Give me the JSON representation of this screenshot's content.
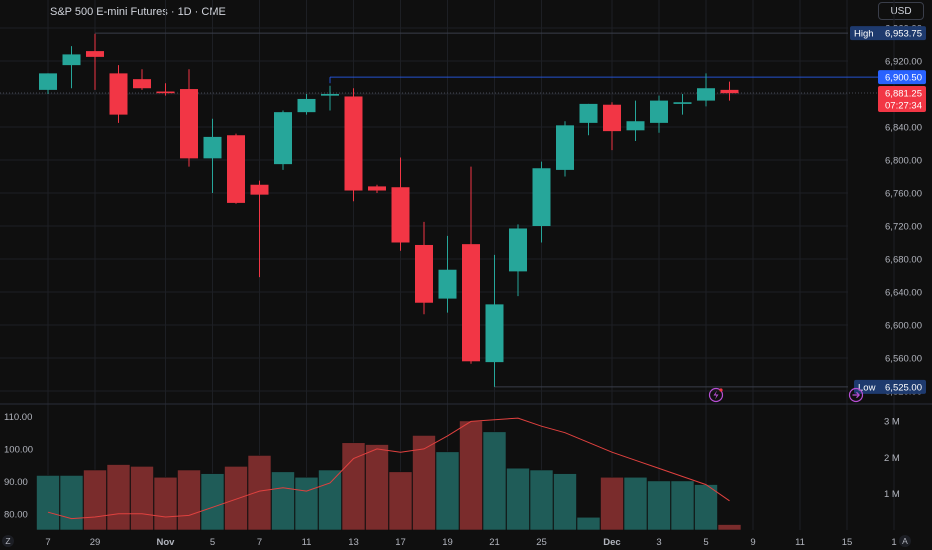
{
  "header": {
    "title": "S&P 500 E-mini Futures · 1D · CME",
    "currency": "USD"
  },
  "colors": {
    "up": "#26a69a",
    "down": "#f23645",
    "up_volume": "#1f5c58",
    "down_volume": "#7a2c2c",
    "grid": "#1d1f24",
    "text": "#b2b5be",
    "ma_line": "#e0413f",
    "highlow_tag": "#1e3a6e",
    "last_tag": "#2962ff",
    "price_tag": "#f23645"
  },
  "markers": {
    "high_label": "High",
    "high_value": "6,953.75",
    "low_label": "Low",
    "low_value": "6,525.00",
    "prev_close_value": "6,900.50",
    "last_price_value": "6,881.25",
    "countdown": "07:27:34"
  },
  "bottom_buttons": {
    "left": "Z",
    "right": "A"
  },
  "chart_data": [
    {
      "type": "candlestick",
      "title": "S&P 500 E-mini Futures · 1D · CME",
      "ylim": [
        6520,
        6960
      ],
      "y_ticks": [
        "6,960.00",
        "6,920.00",
        "6,880.00",
        "6,840.00",
        "6,800.00",
        "6,760.00",
        "6,720.00",
        "6,680.00",
        "6,640.00",
        "6,600.00",
        "6,560.00",
        "6,520.00"
      ],
      "x_labels": [
        {
          "label": "7",
          "index": 0
        },
        {
          "label": "29",
          "index": 2
        },
        {
          "label": "Nov",
          "index": 5
        },
        {
          "label": "5",
          "index": 7
        },
        {
          "label": "7",
          "index": 9
        },
        {
          "label": "11",
          "index": 11
        },
        {
          "label": "13",
          "index": 13
        },
        {
          "label": "17",
          "index": 15
        },
        {
          "label": "19",
          "index": 17
        },
        {
          "label": "21",
          "index": 19
        },
        {
          "label": "25",
          "index": 21
        },
        {
          "label": "Dec",
          "index": 24
        },
        {
          "label": "3",
          "index": 26
        },
        {
          "label": "5",
          "index": 28
        },
        {
          "label": "9",
          "index": 30
        },
        {
          "label": "11",
          "index": 32
        },
        {
          "label": "15",
          "index": 34
        },
        {
          "label": "1",
          "index": 36
        }
      ],
      "candles": [
        {
          "o": 6885,
          "h": 6905,
          "l": 6880,
          "c": 6905
        },
        {
          "o": 6915,
          "h": 6938,
          "l": 6887,
          "c": 6928
        },
        {
          "o": 6932,
          "h": 6953,
          "l": 6885,
          "c": 6925
        },
        {
          "o": 6905,
          "h": 6915,
          "l": 6845,
          "c": 6855
        },
        {
          "o": 6898,
          "h": 6910,
          "l": 6885,
          "c": 6887
        },
        {
          "o": 6883,
          "h": 6893,
          "l": 6878,
          "c": 6881
        },
        {
          "o": 6886,
          "h": 6910,
          "l": 6792,
          "c": 6802
        },
        {
          "o": 6802,
          "h": 6850,
          "l": 6760,
          "c": 6828
        },
        {
          "o": 6830,
          "h": 6832,
          "l": 6747,
          "c": 6748
        },
        {
          "o": 6770,
          "h": 6775,
          "l": 6658,
          "c": 6758
        },
        {
          "o": 6795,
          "h": 6860,
          "l": 6788,
          "c": 6858
        },
        {
          "o": 6858,
          "h": 6880,
          "l": 6855,
          "c": 6874
        },
        {
          "o": 6878,
          "h": 6890,
          "l": 6860,
          "c": 6880
        },
        {
          "o": 6877,
          "h": 6887,
          "l": 6750,
          "c": 6763
        },
        {
          "o": 6768,
          "h": 6770,
          "l": 6760,
          "c": 6763
        },
        {
          "o": 6767,
          "h": 6803,
          "l": 6690,
          "c": 6700
        },
        {
          "o": 6697,
          "h": 6725,
          "l": 6613,
          "c": 6627
        },
        {
          "o": 6632,
          "h": 6708,
          "l": 6615,
          "c": 6667
        },
        {
          "o": 6698,
          "h": 6792,
          "l": 6553,
          "c": 6556
        },
        {
          "o": 6555,
          "h": 6685,
          "l": 6525,
          "c": 6625
        },
        {
          "o": 6665,
          "h": 6722,
          "l": 6635,
          "c": 6717
        },
        {
          "o": 6720,
          "h": 6798,
          "l": 6700,
          "c": 6790
        },
        {
          "o": 6788,
          "h": 6847,
          "l": 6780,
          "c": 6842
        },
        {
          "o": 6845,
          "h": 6868,
          "l": 6830,
          "c": 6868
        },
        {
          "o": 6867,
          "h": 6870,
          "l": 6812,
          "c": 6835
        },
        {
          "o": 6836,
          "h": 6872,
          "l": 6823,
          "c": 6847
        },
        {
          "o": 6845,
          "h": 6878,
          "l": 6833,
          "c": 6872
        },
        {
          "o": 6868,
          "h": 6880,
          "l": 6855,
          "c": 6870
        },
        {
          "o": 6872,
          "h": 6905,
          "l": 6865,
          "c": 6887
        },
        {
          "o": 6885,
          "h": 6895,
          "l": 6872,
          "c": 6881
        }
      ]
    },
    {
      "type": "bar",
      "left_axis": {
        "ylim": [
          75,
          112
        ],
        "ticks": [
          "110.00",
          "100.00",
          "90.00",
          "80.00"
        ]
      },
      "right_axis": {
        "ylim": [
          0,
          3.3
        ],
        "ticks": [
          "3 M",
          "2 M",
          "1 M"
        ]
      },
      "volume_m": [
        1.5,
        1.5,
        1.65,
        1.8,
        1.75,
        1.45,
        1.65,
        1.55,
        1.75,
        2.05,
        1.6,
        1.45,
        1.65,
        2.4,
        2.35,
        1.6,
        2.6,
        2.15,
        3.0,
        2.7,
        1.7,
        1.65,
        1.55,
        0.35,
        1.45,
        1.45,
        1.35,
        1.35,
        1.25,
        0.15
      ],
      "ma_line_left_axis": [
        80.5,
        78.5,
        79.0,
        80.0,
        80.0,
        79.0,
        79.5,
        82.0,
        84.5,
        87.0,
        88.0,
        87.0,
        89.5,
        97.0,
        100.0,
        99.0,
        100.0,
        104.0,
        108.5,
        109.0,
        109.5,
        107.0,
        105.0,
        102.0,
        99.0,
        96.5,
        94.0,
        91.5,
        89.0,
        84.0
      ]
    }
  ]
}
